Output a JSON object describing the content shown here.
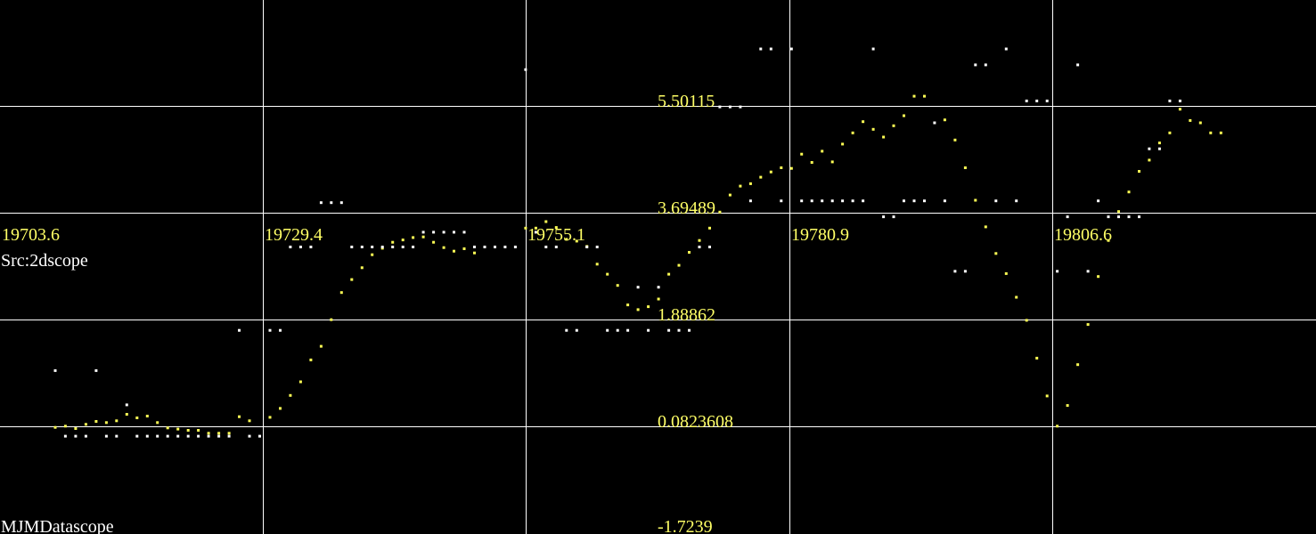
{
  "app": {
    "src_label": "Src:2dscope",
    "brand": "MJMDatascope"
  },
  "colors": {
    "background": "#000000",
    "grid": "#ffffff",
    "labels": "#ffff66",
    "series_yellow": "#ffff55",
    "series_white": "#ffffff"
  },
  "chart_data": {
    "type": "scatter",
    "grid": true,
    "xlim": [
      19703.6,
      19832.3
    ],
    "ylim": [
      -1.7239,
      7.3074
    ],
    "x_ticks": [
      "19703.6",
      "19729.4",
      "19755.1",
      "19780.9",
      "19806.6"
    ],
    "y_ticks": [
      "5.50115",
      "3.69489",
      "1.88862",
      "0.0823608",
      "-1.7239"
    ],
    "series": [
      {
        "color": "#ffff55",
        "points": [
          [
            19709,
            0.08
          ],
          [
            19710,
            0.1
          ],
          [
            19711,
            0.06
          ],
          [
            19712,
            0.13
          ],
          [
            19713,
            0.18
          ],
          [
            19714,
            0.16
          ],
          [
            19715,
            0.19
          ],
          [
            19716,
            0.3
          ],
          [
            19717,
            0.24
          ],
          [
            19718,
            0.27
          ],
          [
            19719,
            0.16
          ],
          [
            19720,
            0.07
          ],
          [
            19721,
            0.05
          ],
          [
            19722,
            0.03
          ],
          [
            19723,
            0.03
          ],
          [
            19724,
            -0.02
          ],
          [
            19725,
            -0.02
          ],
          [
            19726,
            -0.02
          ],
          [
            19727,
            0.26
          ],
          [
            19728,
            0.19
          ],
          [
            19730,
            0.25
          ],
          [
            19731,
            0.4
          ],
          [
            19732,
            0.62
          ],
          [
            19733,
            0.85
          ],
          [
            19734,
            1.22
          ],
          [
            19735,
            1.45
          ],
          [
            19736,
            1.9
          ],
          [
            19737,
            2.36
          ],
          [
            19738,
            2.58
          ],
          [
            19739,
            2.78
          ],
          [
            19740,
            3.0
          ],
          [
            19741,
            3.11
          ],
          [
            19742,
            3.21
          ],
          [
            19743,
            3.25
          ],
          [
            19744,
            3.29
          ],
          [
            19745,
            3.3
          ],
          [
            19746,
            3.21
          ],
          [
            19747,
            3.12
          ],
          [
            19748,
            3.06
          ],
          [
            19749,
            3.1
          ],
          [
            19750,
            3.03
          ],
          [
            19755,
            3.45
          ],
          [
            19756,
            3.45
          ],
          [
            19757,
            3.56
          ],
          [
            19758,
            3.46
          ],
          [
            19759,
            3.26
          ],
          [
            19760,
            3.23
          ],
          [
            19761,
            3.14
          ],
          [
            19762,
            2.84
          ],
          [
            19763,
            2.67
          ],
          [
            19764,
            2.48
          ],
          [
            19765,
            2.15
          ],
          [
            19766,
            2.07
          ],
          [
            19767,
            2.12
          ],
          [
            19768,
            2.25
          ],
          [
            19769,
            2.67
          ],
          [
            19770,
            2.82
          ],
          [
            19771,
            3.04
          ],
          [
            19772,
            3.24
          ],
          [
            19773,
            3.45
          ],
          [
            19774,
            3.72
          ],
          [
            19775,
            4.01
          ],
          [
            19776,
            4.16
          ],
          [
            19777,
            4.2
          ],
          [
            19778,
            4.31
          ],
          [
            19779,
            4.4
          ],
          [
            19780,
            4.47
          ],
          [
            19781,
            4.46
          ],
          [
            19782,
            4.7
          ],
          [
            19783,
            4.56
          ],
          [
            19784,
            4.75
          ],
          [
            19785,
            4.57
          ],
          [
            19786,
            4.87
          ],
          [
            19787,
            5.06
          ],
          [
            19788,
            5.25
          ],
          [
            19789,
            5.12
          ],
          [
            19790,
            4.99
          ],
          [
            19791,
            5.18
          ],
          [
            19792,
            5.35
          ],
          [
            19793,
            5.68
          ],
          [
            19794,
            5.68
          ],
          [
            19796,
            5.28
          ],
          [
            19797,
            4.94
          ],
          [
            19798,
            4.47
          ],
          [
            19799,
            3.92
          ],
          [
            19800,
            3.47
          ],
          [
            19801,
            3.02
          ],
          [
            19802,
            2.68
          ],
          [
            19803,
            2.28
          ],
          [
            19804,
            1.89
          ],
          [
            19805,
            1.25
          ],
          [
            19806,
            0.61
          ],
          [
            19807,
            0.1
          ],
          [
            19808,
            0.45
          ],
          [
            19809,
            1.14
          ],
          [
            19810,
            1.82
          ],
          [
            19811,
            2.63
          ],
          [
            19812,
            3.24
          ],
          [
            19813,
            3.73
          ],
          [
            19814,
            4.06
          ],
          [
            19815,
            4.41
          ],
          [
            19816,
            4.6
          ],
          [
            19817,
            4.89
          ],
          [
            19818,
            5.06
          ],
          [
            19819,
            5.46
          ],
          [
            19820,
            5.27
          ],
          [
            19821,
            5.23
          ],
          [
            19822,
            5.06
          ],
          [
            19823,
            5.06
          ]
        ]
      },
      {
        "color": "#ffffff",
        "points": [
          [
            19709,
            1.04
          ],
          [
            19710,
            -0.07
          ],
          [
            19711,
            -0.07
          ],
          [
            19712,
            -0.07
          ],
          [
            19713,
            1.04
          ],
          [
            19714,
            -0.07
          ],
          [
            19715,
            -0.07
          ],
          [
            19716,
            0.46
          ],
          [
            19717,
            -0.07
          ],
          [
            19718,
            -0.07
          ],
          [
            19719,
            -0.07
          ],
          [
            19720,
            -0.07
          ],
          [
            19721,
            -0.07
          ],
          [
            19722,
            -0.07
          ],
          [
            19723,
            -0.07
          ],
          [
            19724,
            -0.07
          ],
          [
            19725,
            -0.07
          ],
          [
            19726,
            -0.07
          ],
          [
            19727,
            1.72
          ],
          [
            19728,
            -0.07
          ],
          [
            19729,
            -0.07
          ],
          [
            19730,
            1.72
          ],
          [
            19731,
            1.72
          ],
          [
            19732,
            3.13
          ],
          [
            19733,
            3.13
          ],
          [
            19734,
            3.13
          ],
          [
            19735,
            3.88
          ],
          [
            19736,
            3.88
          ],
          [
            19737,
            3.88
          ],
          [
            19738,
            3.13
          ],
          [
            19739,
            3.13
          ],
          [
            19740,
            3.13
          ],
          [
            19741,
            3.13
          ],
          [
            19742,
            3.13
          ],
          [
            19743,
            3.13
          ],
          [
            19744,
            3.13
          ],
          [
            19745,
            3.38
          ],
          [
            19746,
            3.38
          ],
          [
            19747,
            3.38
          ],
          [
            19748,
            3.38
          ],
          [
            19749,
            3.38
          ],
          [
            19750,
            3.13
          ],
          [
            19751,
            3.13
          ],
          [
            19752,
            3.13
          ],
          [
            19753,
            3.13
          ],
          [
            19754,
            3.13
          ],
          [
            19755,
            6.13
          ],
          [
            19756,
            3.38
          ],
          [
            19757,
            3.13
          ],
          [
            19758,
            3.13
          ],
          [
            19759,
            1.72
          ],
          [
            19760,
            1.72
          ],
          [
            19761,
            3.13
          ],
          [
            19762,
            3.13
          ],
          [
            19763,
            1.72
          ],
          [
            19764,
            1.72
          ],
          [
            19765,
            1.72
          ],
          [
            19766,
            2.45
          ],
          [
            19767,
            1.72
          ],
          [
            19768,
            2.45
          ],
          [
            19769,
            1.72
          ],
          [
            19770,
            1.72
          ],
          [
            19771,
            1.72
          ],
          [
            19772,
            3.13
          ],
          [
            19773,
            3.13
          ],
          [
            19774,
            5.5
          ],
          [
            19775,
            5.5
          ],
          [
            19776,
            5.5
          ],
          [
            19777,
            3.91
          ],
          [
            19778,
            6.48
          ],
          [
            19779,
            6.48
          ],
          [
            19780,
            3.91
          ],
          [
            19781,
            6.48
          ],
          [
            19782,
            3.91
          ],
          [
            19783,
            3.91
          ],
          [
            19784,
            3.91
          ],
          [
            19785,
            3.91
          ],
          [
            19786,
            3.91
          ],
          [
            19787,
            3.91
          ],
          [
            19788,
            3.91
          ],
          [
            19789,
            6.48
          ],
          [
            19790,
            3.64
          ],
          [
            19791,
            3.64
          ],
          [
            19792,
            3.91
          ],
          [
            19793,
            3.91
          ],
          [
            19794,
            3.91
          ],
          [
            19795,
            5.23
          ],
          [
            19796,
            3.91
          ],
          [
            19797,
            2.72
          ],
          [
            19798,
            2.72
          ],
          [
            19799,
            6.21
          ],
          [
            19800,
            6.21
          ],
          [
            19801,
            3.91
          ],
          [
            19802,
            6.48
          ],
          [
            19803,
            3.91
          ],
          [
            19804,
            5.6
          ],
          [
            19805,
            5.6
          ],
          [
            19806,
            5.6
          ],
          [
            19807,
            2.72
          ],
          [
            19808,
            3.64
          ],
          [
            19809,
            6.21
          ],
          [
            19810,
            2.72
          ],
          [
            19811,
            3.91
          ],
          [
            19812,
            3.64
          ],
          [
            19813,
            3.64
          ],
          [
            19814,
            3.64
          ],
          [
            19815,
            3.64
          ],
          [
            19816,
            4.79
          ],
          [
            19817,
            4.79
          ],
          [
            19818,
            5.6
          ],
          [
            19819,
            5.6
          ]
        ]
      }
    ]
  }
}
